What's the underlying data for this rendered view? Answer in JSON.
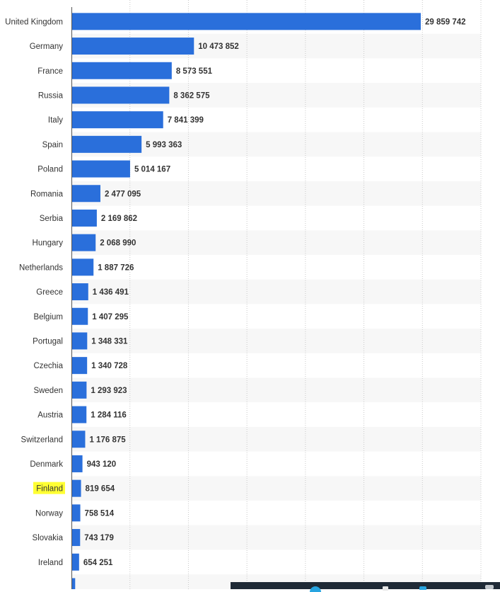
{
  "chart_data": {
    "type": "bar",
    "orientation": "horizontal",
    "categories": [
      "United Kingdom",
      "Germany",
      "France",
      "Russia",
      "Italy",
      "Spain",
      "Poland",
      "Romania",
      "Serbia",
      "Hungary",
      "Netherlands",
      "Greece",
      "Belgium",
      "Portugal",
      "Czechia",
      "Sweden",
      "Austria",
      "Switzerland",
      "Denmark",
      "Finland",
      "Norway",
      "Slovakia",
      "Ireland"
    ],
    "values": [
      29859742,
      10473852,
      8573551,
      8362575,
      7841399,
      5993363,
      5014167,
      2477095,
      2169862,
      2068990,
      1887726,
      1436491,
      1407295,
      1348331,
      1340728,
      1293923,
      1284116,
      1176875,
      943120,
      819654,
      758514,
      743179,
      654251
    ],
    "value_labels": [
      "29 859 742",
      "10 473 852",
      "8 573 551",
      "8 362 575",
      "7 841 399",
      "5 993 363",
      "5 014 167",
      "2 477 095",
      "2 169 862",
      "2 068 990",
      "1 887 726",
      "1 436 491",
      "1 407 295",
      "1 348 331",
      "1 340 728",
      "1 293 923",
      "1 284 116",
      "1 176 875",
      "943 120",
      "819 654",
      "758 514",
      "743 179",
      "654 251"
    ],
    "highlighted_category": "Finland",
    "partial_next_value": 320000,
    "xlim": [
      0,
      35000000
    ],
    "grid": true,
    "bar_color": "#2a6fdb",
    "highlight_color": "#ffff33",
    "stripe_color": "#f7f7f7"
  },
  "taskbar": {
    "background": "#1f2a36"
  }
}
